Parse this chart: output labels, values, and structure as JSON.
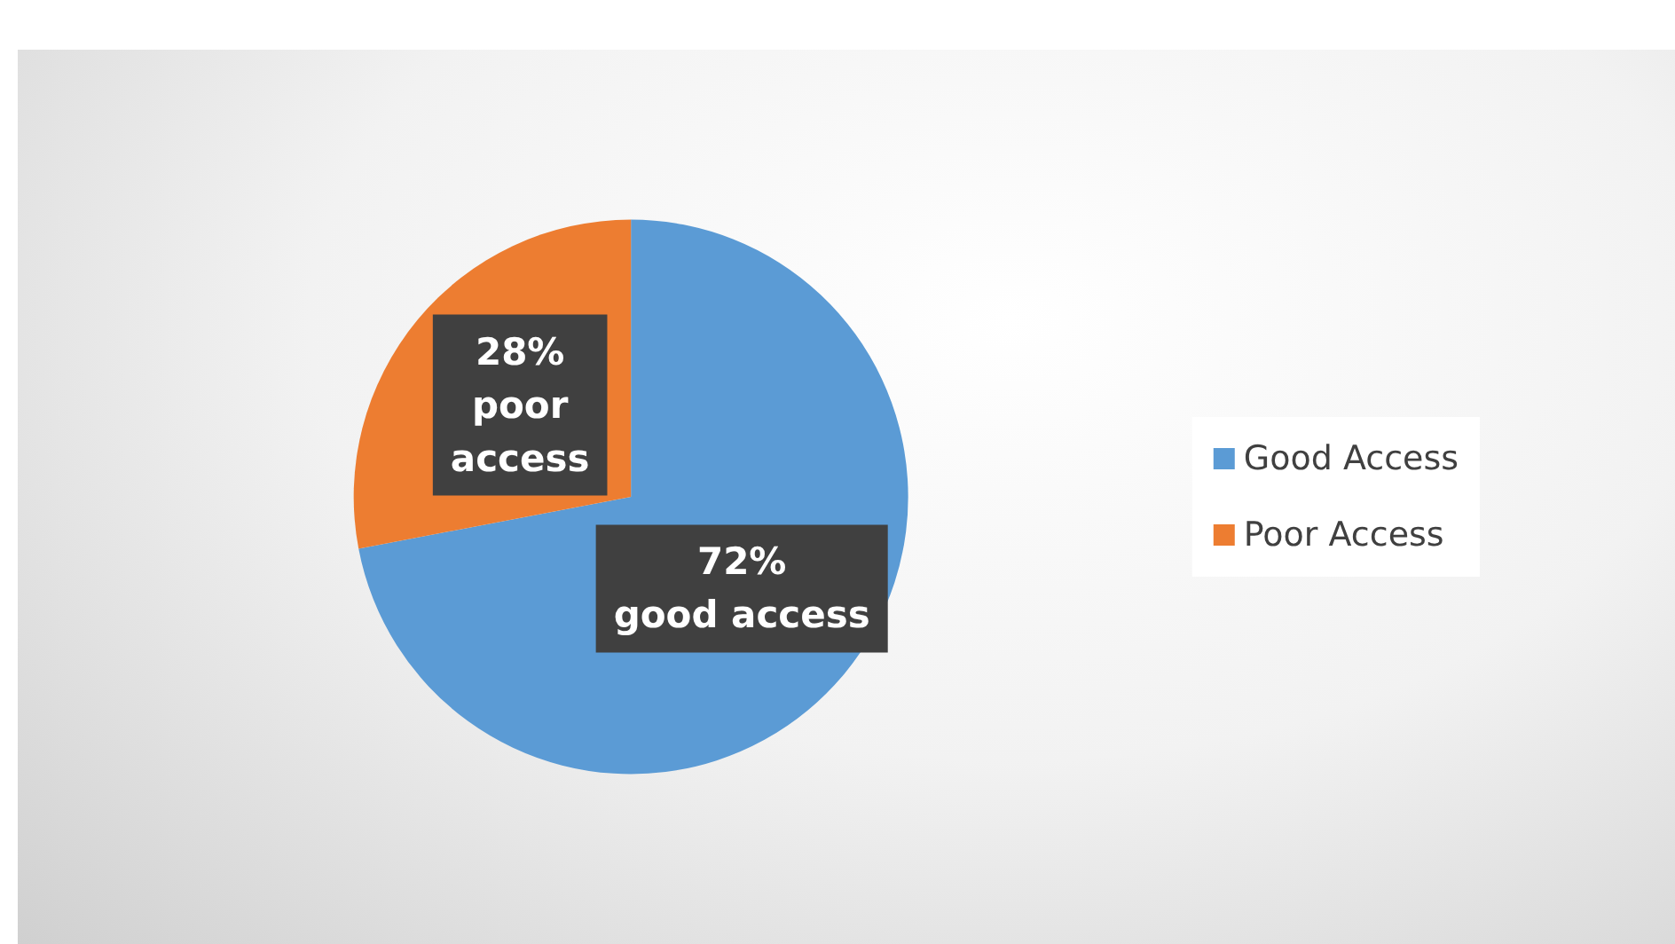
{
  "chart_data": {
    "type": "pie",
    "categories": [
      "Good Access",
      "Poor Access"
    ],
    "values": [
      72,
      28
    ],
    "colors": [
      "#5b9bd5",
      "#ed7d31"
    ],
    "value_labels": [
      "72%\ngood access",
      "28%\npoor\naccess"
    ],
    "legend": "right"
  }
}
